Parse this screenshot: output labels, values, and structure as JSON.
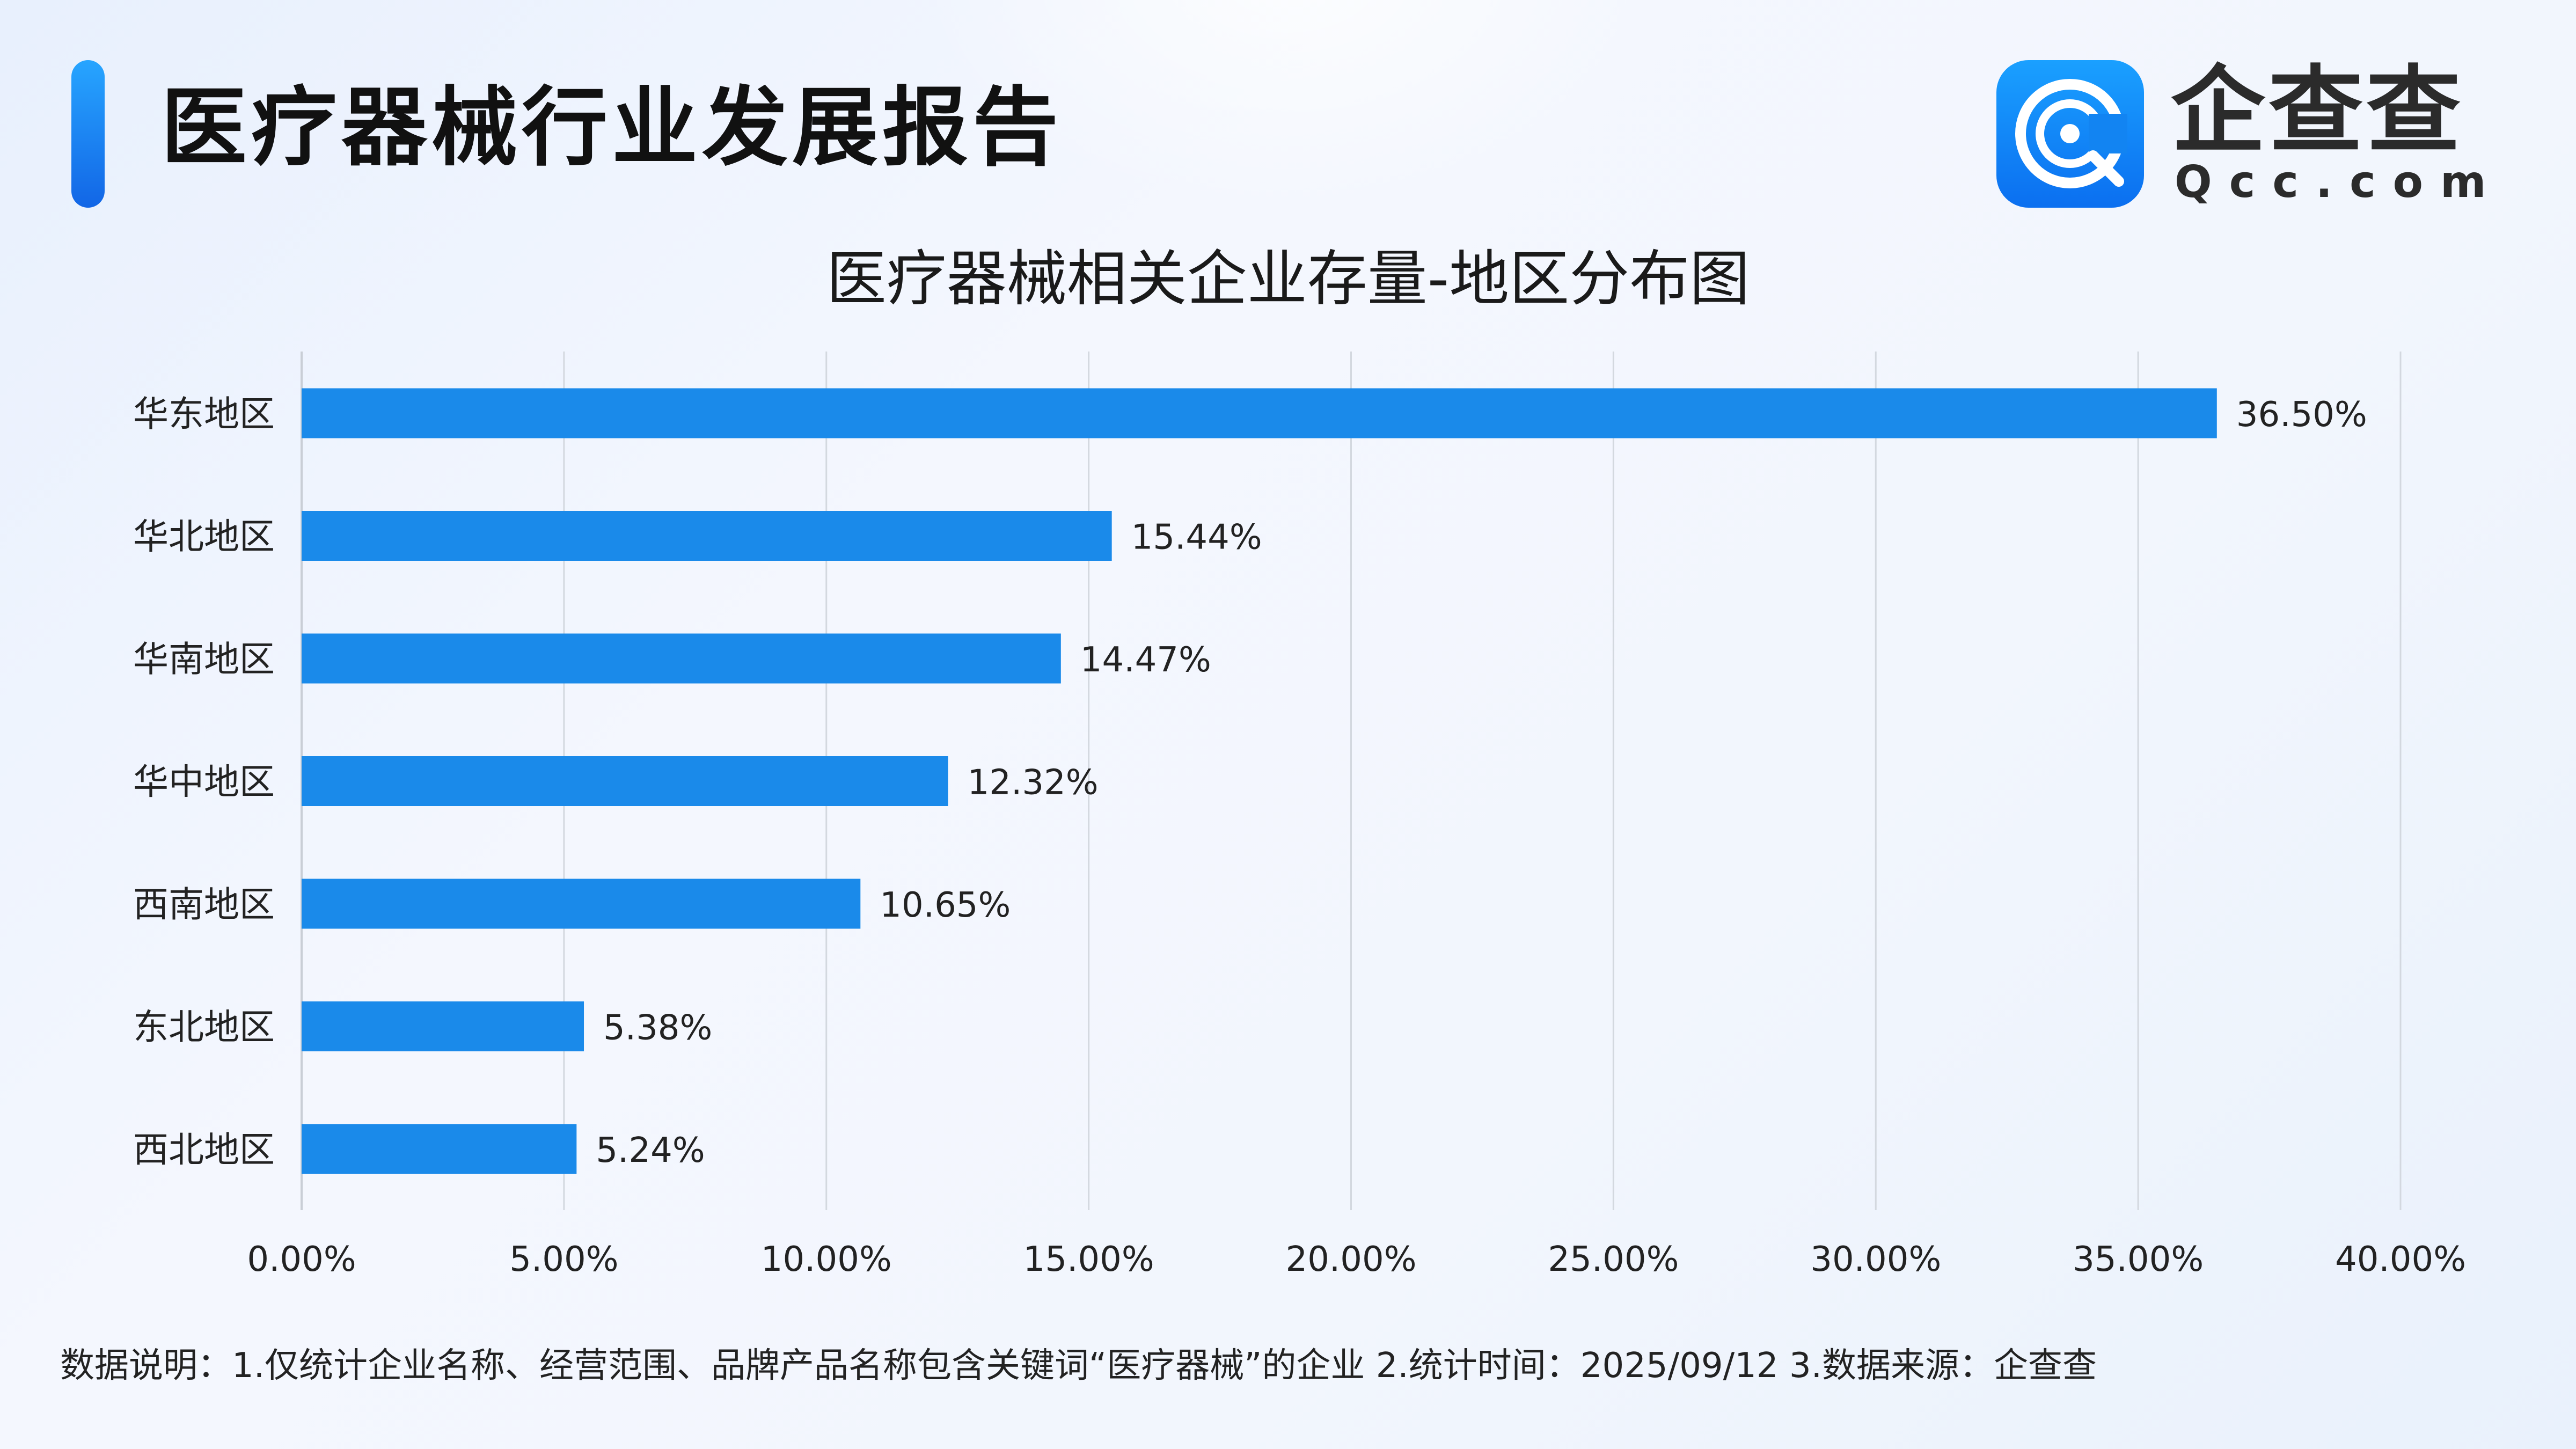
{
  "header": {
    "title": "医疗器械行业发展报告"
  },
  "logo": {
    "cn": "企查查",
    "en": "Qcc.com",
    "icon": "qcc-logo-icon",
    "color": "#1684f0"
  },
  "footer": {
    "note": "数据说明：1.仅统计企业名称、经营范围、品牌产品名称包含关键词“医疗器械”的企业   2.统计时间：2025/09/12   3.数据来源：企查查"
  },
  "chart_data": {
    "type": "bar",
    "orientation": "horizontal",
    "title": "医疗器械相关企业存量-地区分布图",
    "xlabel": "",
    "ylabel": "",
    "categories": [
      "华东地区",
      "华北地区",
      "华南地区",
      "华中地区",
      "西南地区",
      "东北地区",
      "西北地区"
    ],
    "values": [
      36.5,
      15.44,
      14.47,
      12.32,
      10.65,
      5.38,
      5.24
    ],
    "value_labels": [
      "36.50%",
      "15.44%",
      "14.47%",
      "12.32%",
      "10.65%",
      "5.38%",
      "5.24%"
    ],
    "xlim": [
      0,
      40
    ],
    "x_ticks": [
      "0.00%",
      "5.00%",
      "10.00%",
      "15.00%",
      "20.00%",
      "25.00%",
      "30.00%",
      "35.00%",
      "40.00%"
    ],
    "grid": true,
    "legend": "none",
    "bar_color": "#1a8aea"
  }
}
